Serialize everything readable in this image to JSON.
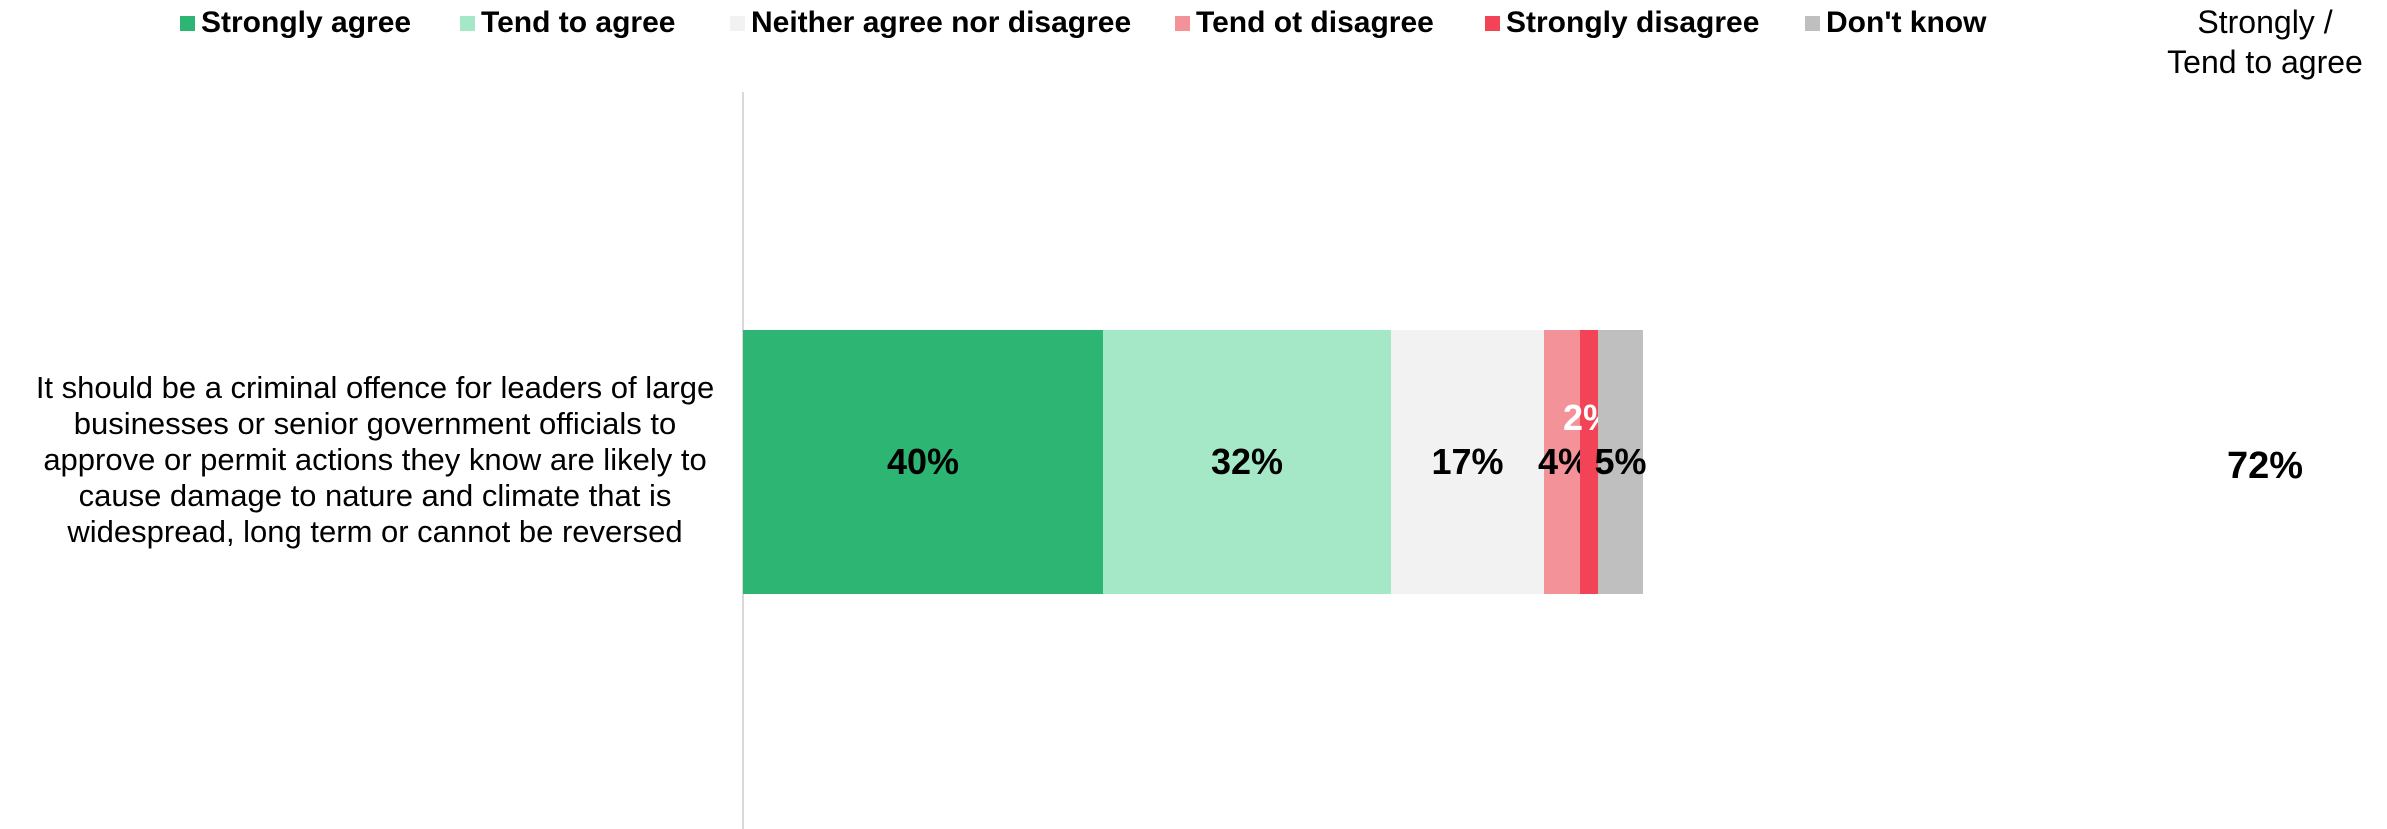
{
  "legend": [
    {
      "label": "Strongly agree",
      "color": "#2db673"
    },
    {
      "label": "Tend to agree",
      "color": "#a4e8c8"
    },
    {
      "label": "Neither agree nor disagree",
      "color": "#f2f2f2"
    },
    {
      "label": "Tend ot disagree",
      "color": "#f4929a"
    },
    {
      "label": "Strongly disagree",
      "color": "#f24456"
    },
    {
      "label": "Don't know",
      "color": "#bfbfbf"
    }
  ],
  "summary": {
    "header_line1": "Strongly /",
    "header_line2": "Tend to agree",
    "value": "72%"
  },
  "chart_data": {
    "type": "bar",
    "orientation": "horizontal",
    "stacked": true,
    "categories": [
      "It should be a criminal offence for leaders of large businesses or senior government officials to approve or permit actions they know are likely to cause damage to nature and climate that is widespread, long term or cannot be reversed"
    ],
    "series": [
      {
        "name": "Strongly agree",
        "values": [
          40
        ],
        "labels": [
          "40%"
        ],
        "color": "#2db673",
        "label_color": "#000000"
      },
      {
        "name": "Tend to agree",
        "values": [
          32
        ],
        "labels": [
          "32%"
        ],
        "color": "#a4e8c8",
        "label_color": "#000000"
      },
      {
        "name": "Neither agree nor disagree",
        "values": [
          17
        ],
        "labels": [
          "17%"
        ],
        "color": "#f2f2f2",
        "label_color": "#000000"
      },
      {
        "name": "Tend ot disagree",
        "values": [
          4
        ],
        "labels": [
          "4%"
        ],
        "color": "#f4929a",
        "label_color": "#000000"
      },
      {
        "name": "Strongly disagree",
        "values": [
          2
        ],
        "labels": [
          "2%"
        ],
        "color": "#f24456",
        "label_color": "#ffffff"
      },
      {
        "name": "Don't know",
        "values": [
          5
        ],
        "labels": [
          "5%"
        ],
        "color": "#bfbfbf",
        "label_color": "#000000"
      }
    ],
    "xlim": [
      0,
      100
    ],
    "legend_position": "top",
    "grid": false
  }
}
